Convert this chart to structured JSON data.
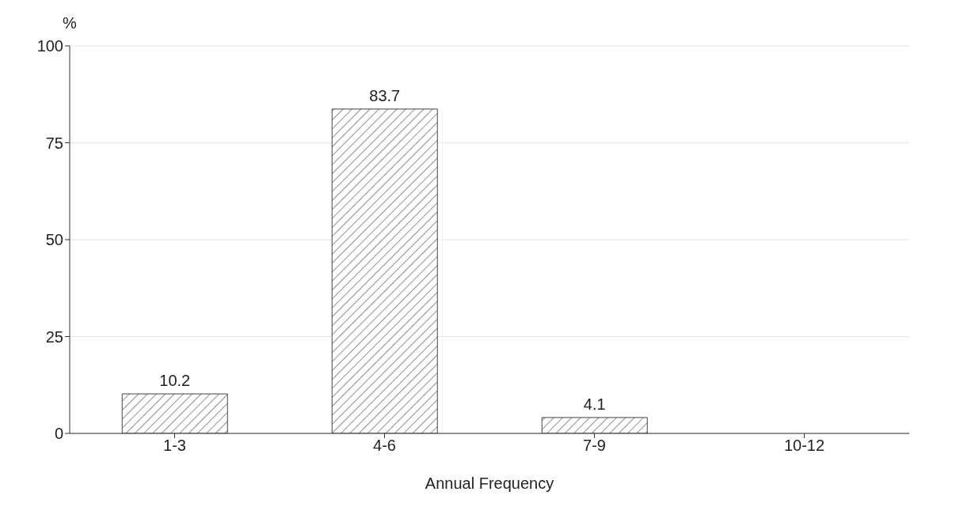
{
  "chart_data": {
    "type": "bar",
    "ylabel": "%",
    "xlabel": "Annual Frequency",
    "categories": [
      "1-3",
      "4-6",
      "7-9",
      "10-12"
    ],
    "values": [
      10.2,
      83.7,
      4.1,
      0
    ],
    "value_labels": [
      "10.2",
      "83.7",
      "4.1",
      null
    ],
    "color": "#444444",
    "ylim": [
      0,
      100
    ],
    "yticks": [
      0,
      25,
      50,
      75,
      100
    ],
    "grid": "y"
  }
}
